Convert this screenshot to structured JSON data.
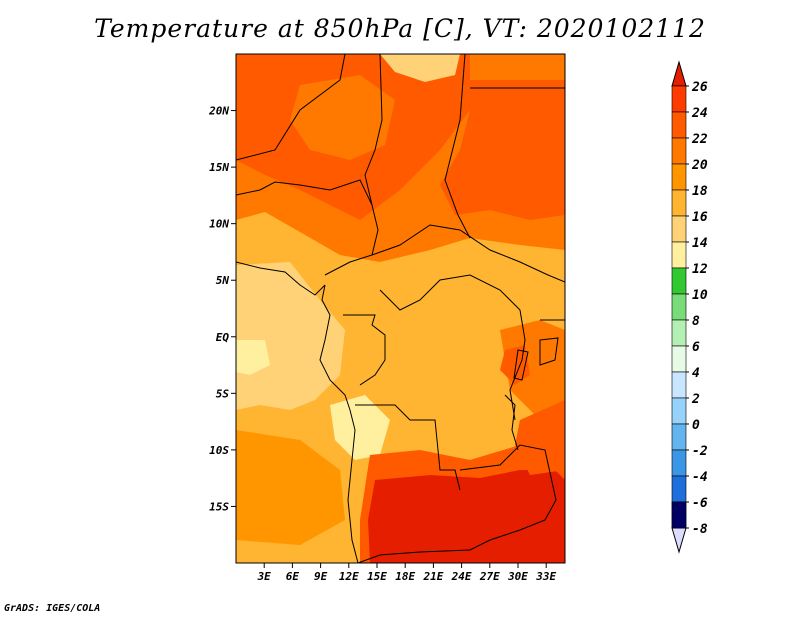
{
  "title": "Temperature at 850hPa [C], VT: 2020102112",
  "credit": "GrADS: IGES/COLA",
  "map": {
    "lon_range": [
      0,
      35
    ],
    "lat_range": [
      -20,
      25
    ],
    "lon_ticks": [
      {
        "value": 3,
        "label": "3E"
      },
      {
        "value": 6,
        "label": "6E"
      },
      {
        "value": 9,
        "label": "9E"
      },
      {
        "value": 12,
        "label": "12E"
      },
      {
        "value": 15,
        "label": "15E"
      },
      {
        "value": 18,
        "label": "18E"
      },
      {
        "value": 21,
        "label": "21E"
      },
      {
        "value": 24,
        "label": "24E"
      },
      {
        "value": 27,
        "label": "27E"
      },
      {
        "value": 30,
        "label": "30E"
      },
      {
        "value": 33,
        "label": "33E"
      }
    ],
    "lat_ticks": [
      {
        "value": 20,
        "label": "20N"
      },
      {
        "value": 15,
        "label": "15N"
      },
      {
        "value": 10,
        "label": "10N"
      },
      {
        "value": 5,
        "label": "5N"
      },
      {
        "value": 0,
        "label": "EQ"
      },
      {
        "value": -5,
        "label": "5S"
      },
      {
        "value": -10,
        "label": "10S"
      },
      {
        "value": -15,
        "label": "15S"
      }
    ]
  },
  "colorbar": {
    "levels": [
      {
        "value": 26,
        "label": "26",
        "color": "#ff3c00"
      },
      {
        "value": 24,
        "label": "24",
        "color": "#ff5a00"
      },
      {
        "value": 22,
        "label": "22",
        "color": "#ff7800"
      },
      {
        "value": 20,
        "label": "20",
        "color": "#ff9600"
      },
      {
        "value": 18,
        "label": "18",
        "color": "#ffb432"
      },
      {
        "value": 16,
        "label": "16",
        "color": "#ffd278"
      },
      {
        "value": 14,
        "label": "14",
        "color": "#fff0a0"
      },
      {
        "value": 12,
        "label": "12",
        "color": "#32c832"
      },
      {
        "value": 10,
        "label": "10",
        "color": "#78dc78"
      },
      {
        "value": 8,
        "label": "8",
        "color": "#b4f0b4"
      },
      {
        "value": 6,
        "label": "6",
        "color": "#e6fae6"
      },
      {
        "value": 4,
        "label": "4",
        "color": "#c8e6ff"
      },
      {
        "value": 2,
        "label": "2",
        "color": "#96d2fa"
      },
      {
        "value": 0,
        "label": "0",
        "color": "#64b4f0"
      },
      {
        "value": -2,
        "label": "-2",
        "color": "#3c96e6"
      },
      {
        "value": -4,
        "label": "-4",
        "color": "#1e6edc"
      },
      {
        "value": -6,
        "label": "-6",
        "color": "#1450c8"
      },
      {
        "value": -8,
        "label": "-8",
        "color": "#0a32a0"
      }
    ],
    "top_color": "#e61e00",
    "bottom_color": "#000064",
    "below_color": "#dcdcff"
  }
}
